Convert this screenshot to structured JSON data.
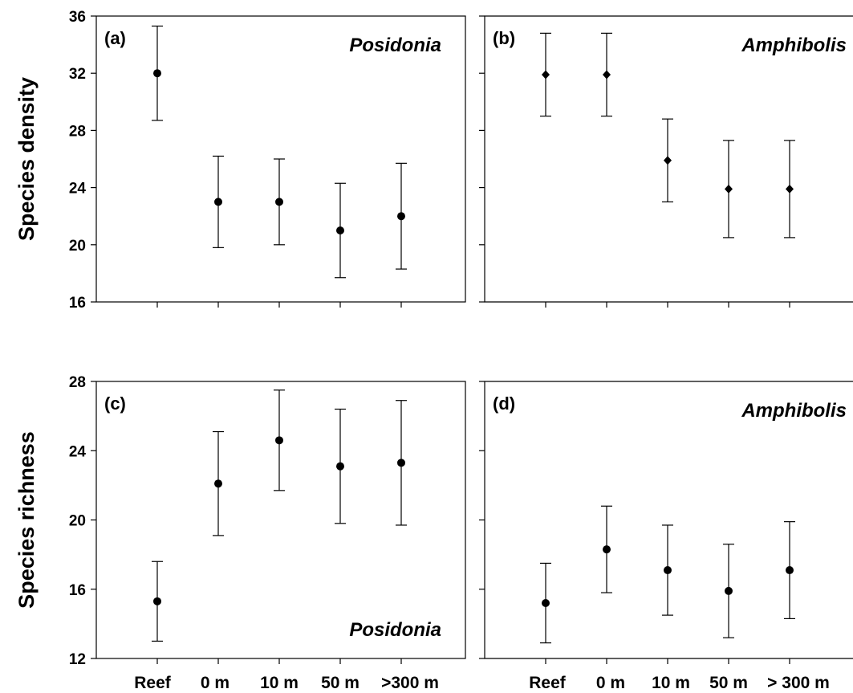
{
  "chart_data": [
    {
      "type": "scatter",
      "panel": "(a)",
      "subtitle": "Posidonia",
      "ylabel": "Species density",
      "ylim": [
        16,
        36
      ],
      "yticks": [
        16,
        20,
        24,
        28,
        32,
        36
      ],
      "categories": [
        "Reef",
        "0 m",
        "10 m",
        "50 m",
        ">300 m"
      ],
      "values": [
        32,
        23,
        23,
        21,
        22
      ],
      "errors": [
        3.3,
        3.2,
        3.0,
        3.3,
        3.7
      ],
      "marker": "circle",
      "subtitle_position": "top-right"
    },
    {
      "type": "scatter",
      "panel": "(b)",
      "subtitle": "Amphibolis",
      "ylabel": "",
      "ylim": [
        16,
        36
      ],
      "yticks": [
        16,
        20,
        24,
        28,
        32,
        36
      ],
      "categories": [
        "Reef",
        "0 m",
        "10 m",
        "50 m",
        ">300 m"
      ],
      "values": [
        31.9,
        31.9,
        25.9,
        23.9,
        23.9
      ],
      "errors": [
        2.9,
        2.9,
        2.9,
        3.4,
        3.4
      ],
      "marker": "diamond",
      "subtitle_position": "top-right"
    },
    {
      "type": "scatter",
      "panel": "(c)",
      "subtitle": "Posidonia",
      "ylabel": "Species richness",
      "ylim": [
        12,
        28
      ],
      "yticks": [
        12,
        16,
        20,
        24,
        28
      ],
      "categories": [
        "Reef",
        "0 m",
        "10 m",
        "50 m",
        ">300 m"
      ],
      "tick_labels": [
        "Reef",
        "0 m",
        "10 m",
        "50 m",
        ">300 m"
      ],
      "values": [
        15.3,
        22.1,
        24.6,
        23.1,
        23.3
      ],
      "errors": [
        2.3,
        3.0,
        2.9,
        3.3,
        3.6
      ],
      "marker": "circle",
      "subtitle_position": "bottom-right"
    },
    {
      "type": "scatter",
      "panel": "(d)",
      "subtitle": "Amphibolis",
      "ylabel": "",
      "ylim": [
        12,
        28
      ],
      "yticks": [
        12,
        16,
        20,
        24,
        28
      ],
      "categories": [
        "Reef",
        "0 m",
        "10 m",
        "50 m",
        "> 300 m"
      ],
      "tick_labels": [
        "Reef",
        "0 m",
        "10 m",
        "50 m",
        "> 300 m"
      ],
      "values": [
        15.2,
        18.3,
        17.1,
        15.9,
        17.1
      ],
      "errors": [
        2.3,
        2.5,
        2.6,
        2.7,
        2.8
      ],
      "marker": "circle",
      "subtitle_position": "top-right"
    }
  ]
}
